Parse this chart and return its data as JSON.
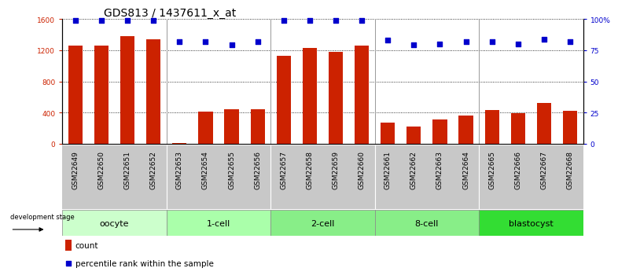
{
  "title": "GDS813 / 1437611_x_at",
  "samples": [
    "GSM22649",
    "GSM22650",
    "GSM22651",
    "GSM22652",
    "GSM22653",
    "GSM22654",
    "GSM22655",
    "GSM22656",
    "GSM22657",
    "GSM22658",
    "GSM22659",
    "GSM22660",
    "GSM22661",
    "GSM22662",
    "GSM22663",
    "GSM22664",
    "GSM22665",
    "GSM22666",
    "GSM22667",
    "GSM22668"
  ],
  "counts": [
    1260,
    1255,
    1380,
    1340,
    5,
    415,
    445,
    445,
    1130,
    1230,
    1175,
    1255,
    270,
    220,
    310,
    360,
    430,
    390,
    520,
    420
  ],
  "percentiles_pct": [
    99,
    99,
    99,
    99,
    82,
    82,
    79,
    82,
    99,
    99,
    99,
    99,
    83,
    79,
    80,
    82,
    82,
    80,
    84,
    82
  ],
  "bar_color": "#cc2200",
  "dot_color": "#0000cc",
  "ylim_left": [
    0,
    1600
  ],
  "ylim_right": [
    0,
    100
  ],
  "yticks_left": [
    0,
    400,
    800,
    1200,
    1600
  ],
  "yticks_right": [
    0,
    25,
    50,
    75,
    100
  ],
  "ytick_labels_right": [
    "0",
    "25",
    "50",
    "75",
    "100%"
  ],
  "grid_color": "#000000",
  "title_fontsize": 10,
  "tick_fontsize": 6.5,
  "label_fontsize": 8,
  "group_defs": [
    {
      "label": "oocyte",
      "start": 0,
      "end": 3,
      "color": "#ccffcc"
    },
    {
      "label": "1-cell",
      "start": 4,
      "end": 7,
      "color": "#aaffaa"
    },
    {
      "label": "2-cell",
      "start": 8,
      "end": 11,
      "color": "#88ee88"
    },
    {
      "label": "8-cell",
      "start": 12,
      "end": 15,
      "color": "#88ee88"
    },
    {
      "label": "blastocyst",
      "start": 16,
      "end": 19,
      "color": "#33dd33"
    }
  ],
  "xticklabel_bg": "#c8c8c8",
  "group_boundaries": [
    3.5,
    7.5,
    11.5,
    15.5
  ]
}
